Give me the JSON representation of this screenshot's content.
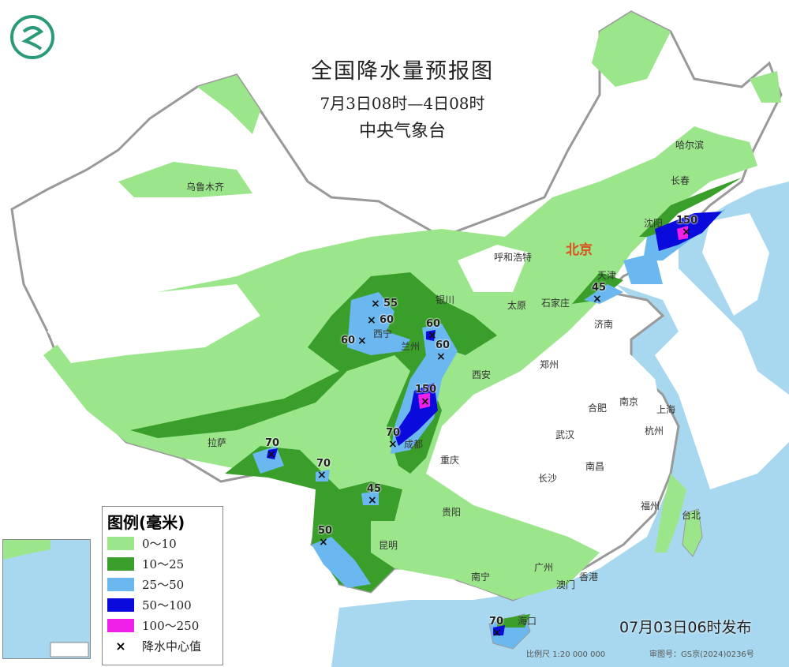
{
  "title": "全国降水量预报图",
  "period": "7月3日08时—4日08时",
  "issuer": "中央气象台",
  "issued_time": "07月03日06时发布",
  "scale": "比例尺 1:20 000 000",
  "review_number": "审图号：GS京(2024)0236号",
  "legend": {
    "title": "图例(毫米)",
    "items": [
      {
        "label": "0～10",
        "color": "#9be68a"
      },
      {
        "label": "10～25",
        "color": "#3a9e2a"
      },
      {
        "label": "25～50",
        "color": "#6bb8f0"
      },
      {
        "label": "50～100",
        "color": "#0a0adc"
      },
      {
        "label": "100～250",
        "color": "#f020e8"
      }
    ],
    "center_marker": "×",
    "center_label": "降水中心值"
  },
  "cities": [
    "乌鲁木齐",
    "哈尔滨",
    "长春",
    "沈阳",
    "北京",
    "天津",
    "呼和浩特",
    "银川",
    "太原",
    "石家庄",
    "济南",
    "西宁",
    "兰州",
    "西安",
    "郑州",
    "合肥",
    "南京",
    "上海",
    "杭州",
    "武汉",
    "成都",
    "重庆",
    "拉萨",
    "长沙",
    "南昌",
    "贵阳",
    "昆明",
    "福州",
    "台北",
    "南宁",
    "广州",
    "香港",
    "澳门",
    "海口"
  ],
  "precip_centers": [
    {
      "value": "150",
      "near": "沈阳"
    },
    {
      "value": "45",
      "near": "天津"
    },
    {
      "value": "55",
      "near": "西宁"
    },
    {
      "value": "60",
      "near": "西宁"
    },
    {
      "value": "60",
      "near": "西宁"
    },
    {
      "value": "60",
      "near": "兰州"
    },
    {
      "value": "60",
      "near": "兰州"
    },
    {
      "value": "150",
      "near": "成都"
    },
    {
      "value": "70",
      "near": "成都"
    },
    {
      "value": "70",
      "near": "拉萨"
    },
    {
      "value": "70",
      "near": "拉萨"
    },
    {
      "value": "45",
      "near": "昆明"
    },
    {
      "value": "50",
      "near": "昆明"
    },
    {
      "value": "70",
      "near": "海口"
    }
  ],
  "colors": {
    "sea": "#a8d8f0",
    "land": "#ffffff",
    "capital": "#d9531e"
  }
}
